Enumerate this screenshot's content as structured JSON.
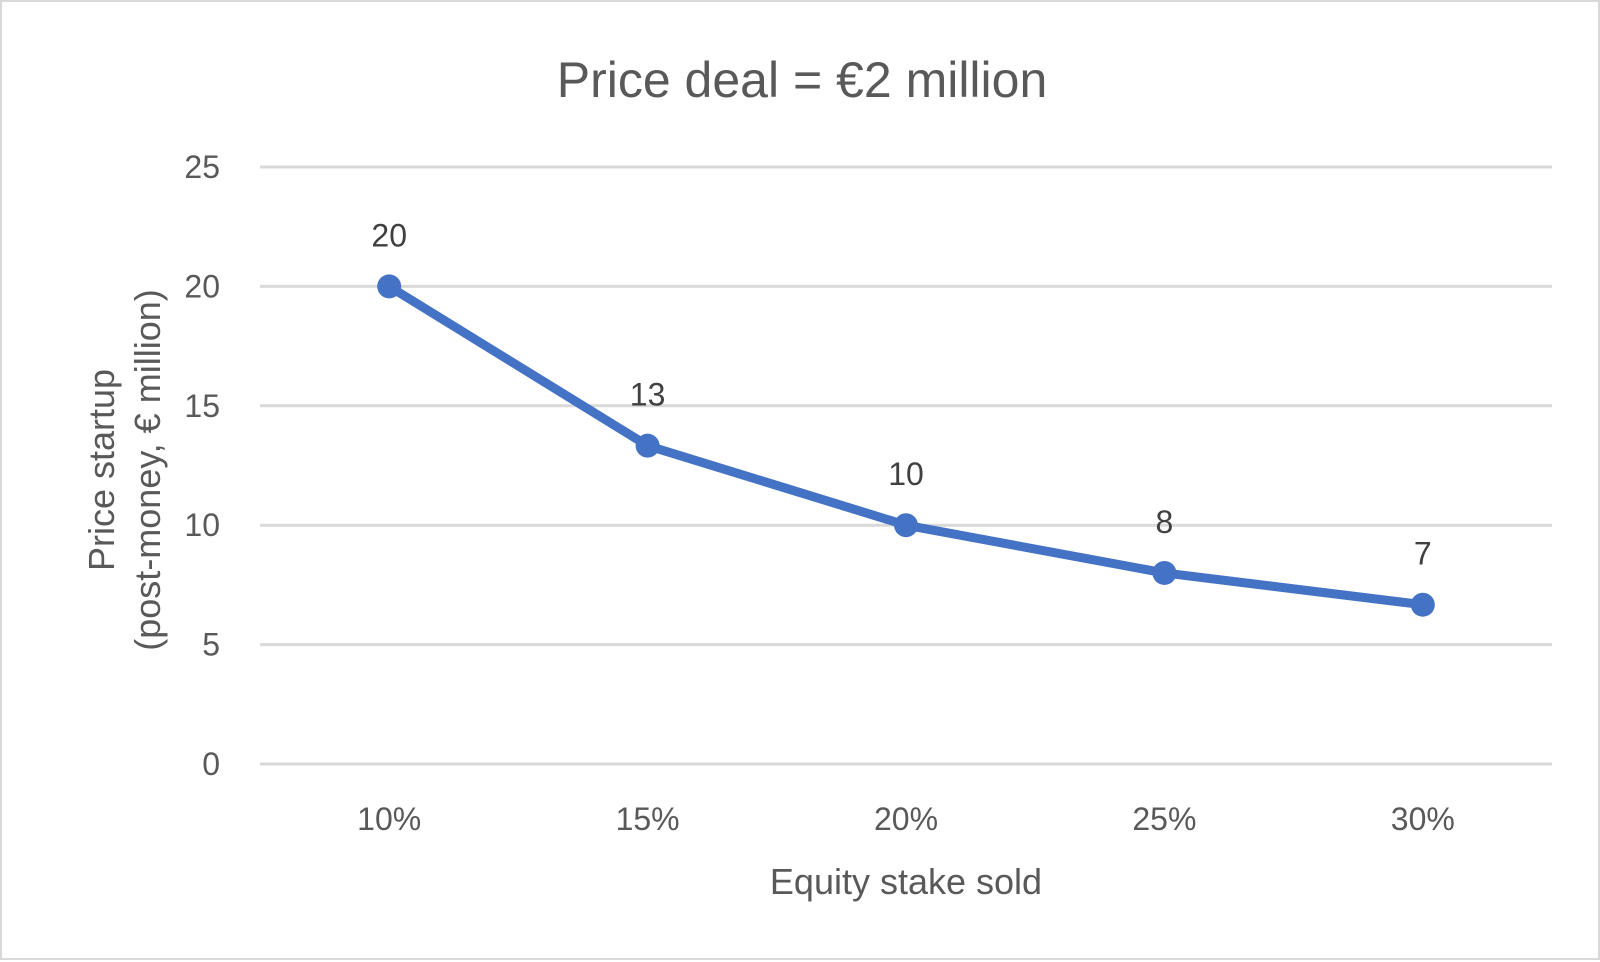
{
  "chart_data": {
    "type": "line",
    "title": "Price deal = €2 million",
    "xlabel": "Equity stake sold",
    "ylabel_lines": [
      "Price startup",
      "(post-money, € million)"
    ],
    "categories": [
      "10%",
      "15%",
      "20%",
      "25%",
      "30%"
    ],
    "series": [
      {
        "values": [
          20,
          13.33,
          10,
          8,
          6.67
        ],
        "data_labels": [
          "20",
          "13",
          "10",
          "8",
          "7"
        ],
        "color": "#4472c4"
      }
    ],
    "ylim": [
      0,
      25
    ],
    "yticks": [
      0,
      5,
      10,
      15,
      20,
      25
    ],
    "grid": true,
    "legend": "none"
  }
}
